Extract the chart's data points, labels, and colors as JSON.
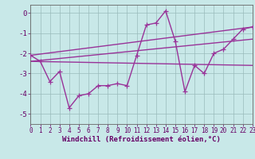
{
  "background_color": "#c8e8e8",
  "grid_color": "#99bbbb",
  "line_color": "#993399",
  "marker": "+",
  "marker_size": 4,
  "line_width": 1.0,
  "series1_x": [
    0,
    1,
    2,
    3,
    4,
    5,
    6,
    7,
    8,
    9,
    10,
    11,
    12,
    13,
    14,
    15,
    16,
    17,
    18,
    19,
    20,
    21,
    22,
    23
  ],
  "series1_y": [
    -2.1,
    -2.4,
    -3.4,
    -2.9,
    -4.7,
    -4.1,
    -4.0,
    -3.6,
    -3.6,
    -3.5,
    -3.6,
    -2.1,
    -0.6,
    -0.5,
    0.1,
    -1.4,
    -3.9,
    -2.6,
    -3.0,
    -2.0,
    -1.8,
    -1.3,
    -0.8,
    -0.7
  ],
  "series2_x": [
    0,
    23
  ],
  "series2_y": [
    -2.1,
    -0.7
  ],
  "series3_x": [
    0,
    23
  ],
  "series3_y": [
    -2.4,
    -1.3
  ],
  "series4_x": [
    0,
    23
  ],
  "series4_y": [
    -2.4,
    -2.6
  ],
  "xlim": [
    0,
    23
  ],
  "ylim": [
    -5.5,
    0.4
  ],
  "yticks": [
    0,
    -1,
    -2,
    -3,
    -4,
    -5
  ],
  "xticks": [
    0,
    1,
    2,
    3,
    4,
    5,
    6,
    7,
    8,
    9,
    10,
    11,
    12,
    13,
    14,
    15,
    16,
    17,
    18,
    19,
    20,
    21,
    22,
    23
  ],
  "xlabel": "Windchill (Refroidissement éolien,°C)",
  "xlabel_fontsize": 6.5,
  "tick_fontsize": 5.5,
  "ytick_fontsize": 6.5,
  "axis_color": "#660066",
  "spine_color": "#666666"
}
